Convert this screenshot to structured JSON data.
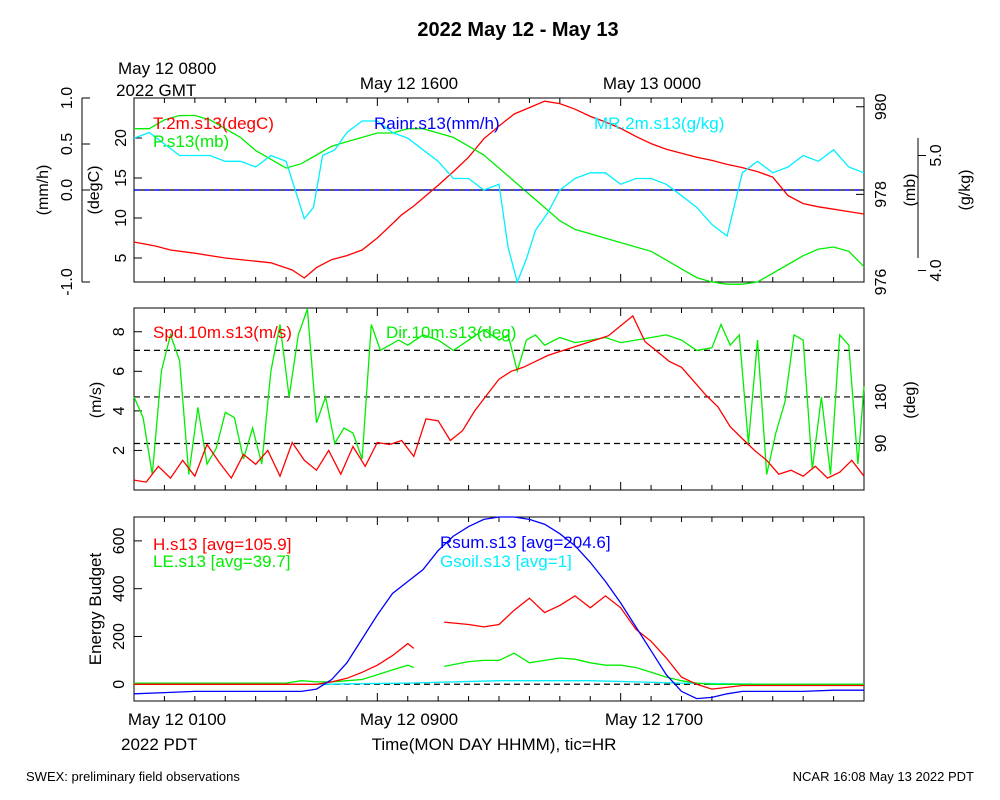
{
  "title": "2022 May 12 - May 13",
  "top_time_labels": [
    "May 12 0800",
    "2022 GMT",
    "May 12 1600",
    "May 13 0000"
  ],
  "bottom_time_labels": [
    "May 12 0100",
    "2022 PDT",
    "May 12 0900",
    "May 12 1700"
  ],
  "x_axis_label": "Time(MON DAY HHMM), tic=HR",
  "footer_left": "SWEX: preliminary field observations",
  "footer_right": "NCAR 16:08 May 13 2022 PDT",
  "colors": {
    "red": "#ff0000",
    "green": "#00ee00",
    "blue": "#0000ff",
    "cyan": "#00f0ff",
    "black": "#000000"
  },
  "chart_data": [
    {
      "panel": "met",
      "type": "line",
      "x_unit": "hours since May 12 0100 PDT",
      "xlim": [
        0,
        24
      ],
      "grid": false,
      "axes": {
        "rain": {
          "label": "(mm/h)",
          "ticks": [
            "-1.0",
            "0.0",
            "0.5",
            "1.0"
          ],
          "lim": [
            -1.0,
            1.0
          ]
        },
        "temp": {
          "label": "(degC)",
          "ticks": [
            "5",
            "10",
            "15",
            "20"
          ],
          "lim": [
            2,
            25
          ]
        },
        "pres": {
          "label": "(mb)",
          "ticks": [
            "976",
            "978",
            "980"
          ],
          "lim": [
            976,
            980.2
          ]
        },
        "mr": {
          "label": "(g/kg)",
          "ticks": [
            "4.0",
            "5.0"
          ],
          "lim": [
            3.9,
            5.5
          ]
        }
      },
      "legend": [
        "T.2m.s13(degC)",
        "P.s13(mb)",
        "Rainr.s13(mm/h)",
        "MR.2m.s13(g/kg)"
      ],
      "series": [
        {
          "name": "T.2m.s13(degC)",
          "axis": "temp",
          "color": "#ff0000",
          "x": [
            0,
            0.7,
            1.2,
            2,
            2.5,
            3,
            3.5,
            4,
            4.5,
            5.2,
            5.6,
            6,
            6.5,
            7,
            7.5,
            8,
            8.5,
            8.8,
            9.2,
            9.6,
            10,
            10.5,
            11,
            11.5,
            12,
            12.5,
            13,
            13.5,
            14,
            14.5,
            15,
            15.5,
            16,
            16.5,
            17,
            17.5,
            18,
            18.5,
            19,
            19.5,
            20,
            20.5,
            21,
            21.5,
            22,
            22.5,
            23,
            23.5,
            24
          ],
          "y": [
            7,
            6.5,
            6,
            5.6,
            5.3,
            5,
            4.8,
            4.6,
            4.4,
            3.5,
            2.5,
            3.8,
            4.8,
            5.3,
            6,
            7.5,
            9.3,
            10.4,
            11.5,
            12.8,
            14.1,
            15.8,
            17.6,
            19.9,
            21.5,
            23,
            23.8,
            24.6,
            24.3,
            23.6,
            22.7,
            22,
            21.2,
            20.2,
            19.3,
            18.6,
            18.1,
            17.6,
            17.2,
            16.7,
            16.3,
            15.8,
            15.1,
            12.8,
            11.8,
            11.4,
            11.1,
            10.8,
            10.5
          ]
        },
        {
          "name": "P.s13(mb)",
          "axis": "pres",
          "color": "#00ee00",
          "x": [
            0,
            0.5,
            1,
            1.5,
            2,
            2.5,
            3,
            3.5,
            4,
            4.5,
            5,
            5.5,
            6,
            6.5,
            7,
            7.5,
            8,
            8.5,
            9,
            9.5,
            10,
            10.5,
            11,
            11.5,
            12,
            12.5,
            13,
            13.5,
            14,
            14.5,
            15,
            15.5,
            16,
            16.5,
            17,
            17.5,
            18,
            18.5,
            19,
            19.5,
            20,
            20.5,
            21,
            21.5,
            22,
            22.5,
            23,
            23.5,
            24
          ],
          "y": [
            979.5,
            979.5,
            979.7,
            979.8,
            979.8,
            979.7,
            979.5,
            979.3,
            979.0,
            978.8,
            978.6,
            978.7,
            978.9,
            979.1,
            979.2,
            979.3,
            979.4,
            979.4,
            979.5,
            979.5,
            979.4,
            979.3,
            979.1,
            978.9,
            978.6,
            978.3,
            978.0,
            977.7,
            977.4,
            977.2,
            977.1,
            977.0,
            976.9,
            976.8,
            976.7,
            976.5,
            976.3,
            976.1,
            976.0,
            975.95,
            975.95,
            976.0,
            976.2,
            976.4,
            976.6,
            976.75,
            976.8,
            976.7,
            976.35
          ]
        },
        {
          "name": "Rainr.s13(mm/h)",
          "axis": "rain",
          "color": "#0000ff",
          "dashed": true,
          "x": [
            0,
            24
          ],
          "y": [
            0,
            0
          ]
        },
        {
          "name": "MR.2m.s13(g/kg)",
          "axis": "mr",
          "color": "#00f0ff",
          "x": [
            0,
            0.5,
            1,
            1.5,
            2,
            2.5,
            3,
            3.5,
            4,
            4.5,
            5,
            5.3,
            5.6,
            5.9,
            6.2,
            6.6,
            7,
            7.5,
            8,
            8.5,
            9,
            9.5,
            10,
            10.5,
            11,
            11.5,
            12,
            12.3,
            12.6,
            12.9,
            13.2,
            13.6,
            14,
            14.5,
            15,
            15.5,
            16,
            16.5,
            17,
            17.5,
            18,
            18.5,
            19,
            19.5,
            20,
            20.5,
            21,
            21.5,
            22,
            22.5,
            23,
            23.5,
            24
          ],
          "y": [
            5.15,
            5.2,
            5.1,
            5.0,
            5.0,
            5.0,
            4.95,
            4.95,
            4.9,
            5.0,
            4.95,
            4.7,
            4.45,
            4.55,
            5.0,
            5.05,
            5.2,
            5.3,
            5.3,
            5.2,
            5.15,
            5.05,
            4.95,
            4.8,
            4.8,
            4.7,
            4.75,
            4.2,
            3.9,
            4.1,
            4.35,
            4.5,
            4.7,
            4.8,
            4.85,
            4.85,
            4.75,
            4.8,
            4.8,
            4.75,
            4.65,
            4.55,
            4.4,
            4.3,
            4.85,
            4.95,
            4.85,
            4.9,
            5.0,
            4.95,
            5.05,
            4.9,
            4.85
          ]
        }
      ]
    },
    {
      "panel": "wind",
      "type": "line",
      "x_unit": "hours since May 12 0100 PDT",
      "xlim": [
        0,
        24
      ],
      "grid": "dashed horizontal at 90, 180, 270 deg",
      "axes": {
        "spd": {
          "label": "(m/s)",
          "ticks": [
            "2",
            "4",
            "6",
            "8"
          ],
          "lim": [
            0,
            9.2
          ]
        },
        "dir": {
          "label": "(deg)",
          "ticks": [
            "90",
            "180"
          ],
          "lim": [
            0,
            352
          ]
        }
      },
      "legend": [
        "Spd.10m.s13(m/s)",
        "Dir.10m.s13(deg)"
      ],
      "series": [
        {
          "name": "Spd.10m.s13(m/s)",
          "axis": "spd",
          "color": "#ff0000",
          "x": [
            0,
            0.4,
            0.8,
            1.2,
            1.6,
            2,
            2.4,
            2.8,
            3.2,
            3.6,
            4,
            4.4,
            4.8,
            5.2,
            5.6,
            6,
            6.4,
            6.8,
            7.2,
            7.6,
            8,
            8.4,
            8.8,
            9.2,
            9.6,
            10,
            10.4,
            10.8,
            11.2,
            11.6,
            12,
            12.4,
            12.8,
            13.2,
            13.6,
            14,
            14.4,
            14.8,
            15.2,
            15.6,
            16,
            16.4,
            16.8,
            17.2,
            17.6,
            18,
            18.4,
            18.8,
            19.2,
            19.6,
            20,
            20.4,
            20.8,
            21.2,
            21.6,
            22,
            22.4,
            22.8,
            23.2,
            23.6,
            24
          ],
          "y": [
            0.5,
            0.4,
            1.2,
            0.6,
            1.5,
            0.7,
            2.3,
            1.4,
            0.6,
            1.8,
            1.3,
            2.0,
            0.7,
            2.4,
            1.5,
            1.0,
            2.0,
            0.8,
            2.2,
            1.2,
            2.4,
            2.3,
            2.5,
            1.7,
            3.6,
            3.5,
            2.5,
            3.0,
            4.0,
            4.8,
            5.6,
            6.0,
            6.2,
            6.5,
            6.8,
            7.0,
            7.2,
            7.4,
            7.6,
            7.8,
            8.3,
            8.8,
            7.5,
            7.0,
            6.5,
            6.2,
            5.5,
            4.8,
            4.2,
            3.2,
            2.6,
            2.0,
            1.5,
            0.8,
            1.0,
            0.7,
            1.2,
            0.6,
            0.9,
            1.5,
            0.7
          ]
        },
        {
          "name": "Dir.10m.s13(deg)",
          "axis": "dir",
          "color": "#00ee00",
          "x": [
            0,
            0.3,
            0.6,
            0.9,
            1.2,
            1.5,
            1.8,
            2.1,
            2.4,
            2.7,
            3.0,
            3.3,
            3.6,
            3.9,
            4.2,
            4.5,
            4.8,
            5.1,
            5.4,
            5.7,
            6.0,
            6.3,
            6.6,
            6.9,
            7.2,
            7.5,
            7.8,
            8.1,
            8.4,
            8.7,
            9.0,
            9.5,
            10,
            10.5,
            11,
            11.5,
            12,
            12.3,
            12.6,
            12.9,
            13.2,
            13.5,
            14,
            14.5,
            15,
            15.5,
            16,
            16.5,
            17,
            17.5,
            18,
            18.5,
            19,
            19.3,
            19.6,
            19.9,
            20.2,
            20.5,
            20.8,
            21.1,
            21.4,
            21.7,
            22,
            22.3,
            22.6,
            22.9,
            23.2,
            23.5,
            23.8,
            24
          ],
          "y": [
            180,
            140,
            30,
            230,
            300,
            250,
            30,
            160,
            50,
            80,
            150,
            140,
            60,
            120,
            50,
            230,
            320,
            180,
            300,
            350,
            130,
            180,
            90,
            120,
            110,
            60,
            320,
            270,
            280,
            290,
            280,
            300,
            290,
            270,
            290,
            310,
            290,
            300,
            230,
            290,
            300,
            280,
            295,
            285,
            290,
            295,
            285,
            290,
            295,
            300,
            290,
            270,
            275,
            320,
            280,
            300,
            90,
            290,
            30,
            110,
            170,
            300,
            290,
            40,
            180,
            30,
            300,
            280,
            50,
            200
          ]
        }
      ]
    },
    {
      "panel": "energy",
      "type": "line",
      "x_unit": "hours since May 12 0100 PDT",
      "xlim": [
        0,
        24
      ],
      "ylabel": "Energy Budget",
      "yticks": [
        "0",
        "200",
        "400",
        "600"
      ],
      "ylim": [
        -70,
        700
      ],
      "grid": "dashed horizontal at 0",
      "legend": [
        "H.s13 [avg=105.9]",
        "LE.s13 [avg=39.7]",
        "Rsum.s13 [avg=204.6]",
        "Gsoil.s13 [avg=1]"
      ],
      "series": [
        {
          "name": "H.s13 [avg=105.9]",
          "color": "#ff0000",
          "x": [
            0,
            5,
            6,
            6.5,
            7,
            7.5,
            8,
            8.5,
            9,
            9.2,
            null,
            10.2,
            11,
            11.5,
            12,
            12.5,
            13,
            13.5,
            14,
            14.5,
            15,
            15.5,
            16,
            16.5,
            17,
            17.5,
            18,
            18.5,
            19,
            20,
            24
          ],
          "y": [
            0,
            0,
            0,
            10,
            25,
            50,
            80,
            120,
            170,
            150,
            null,
            260,
            250,
            240,
            250,
            310,
            360,
            300,
            330,
            370,
            320,
            370,
            320,
            230,
            180,
            110,
            30,
            0,
            -20,
            -5,
            -5
          ]
        },
        {
          "name": "LE.s13 [avg=39.7]",
          "color": "#00ee00",
          "x": [
            0,
            5,
            5.5,
            6,
            6.5,
            7,
            7.5,
            8,
            8.5,
            9,
            9.2,
            null,
            10.2,
            11,
            11.5,
            12,
            12.5,
            13,
            13.5,
            14,
            14.5,
            15,
            15.5,
            16,
            16.5,
            17,
            17.5,
            18,
            18.5,
            19,
            20,
            24
          ],
          "y": [
            5,
            5,
            15,
            10,
            10,
            15,
            20,
            40,
            60,
            80,
            70,
            null,
            75,
            95,
            100,
            100,
            130,
            90,
            100,
            110,
            105,
            90,
            80,
            80,
            70,
            50,
            30,
            15,
            5,
            0,
            0,
            0
          ]
        },
        {
          "name": "Rsum.s13 [avg=204.6]",
          "color": "#0000ff",
          "x": [
            0,
            1,
            2,
            3,
            4,
            5,
            5.5,
            6,
            6.5,
            7,
            7.5,
            8,
            8.5,
            9,
            9.5,
            10,
            10.5,
            11,
            11.5,
            12,
            12.5,
            13,
            13.5,
            14,
            14.5,
            15,
            15.5,
            16,
            16.5,
            17,
            17.5,
            18,
            18.5,
            19,
            19.5,
            20,
            21,
            22,
            23,
            24
          ],
          "y": [
            -40,
            -35,
            -30,
            -30,
            -30,
            -30,
            -30,
            -20,
            20,
            90,
            190,
            290,
            380,
            430,
            480,
            560,
            620,
            660,
            690,
            700,
            700,
            690,
            670,
            630,
            580,
            510,
            430,
            340,
            240,
            140,
            40,
            -30,
            -60,
            -55,
            -40,
            -30,
            -30,
            -30,
            -25,
            -25
          ]
        },
        {
          "name": "Gsoil.s13 [avg=1]",
          "color": "#00f0ff",
          "x": [
            0,
            6,
            9,
            12,
            15,
            18,
            21,
            24
          ],
          "y": [
            0,
            0,
            5,
            15,
            15,
            5,
            0,
            0
          ]
        }
      ]
    }
  ]
}
